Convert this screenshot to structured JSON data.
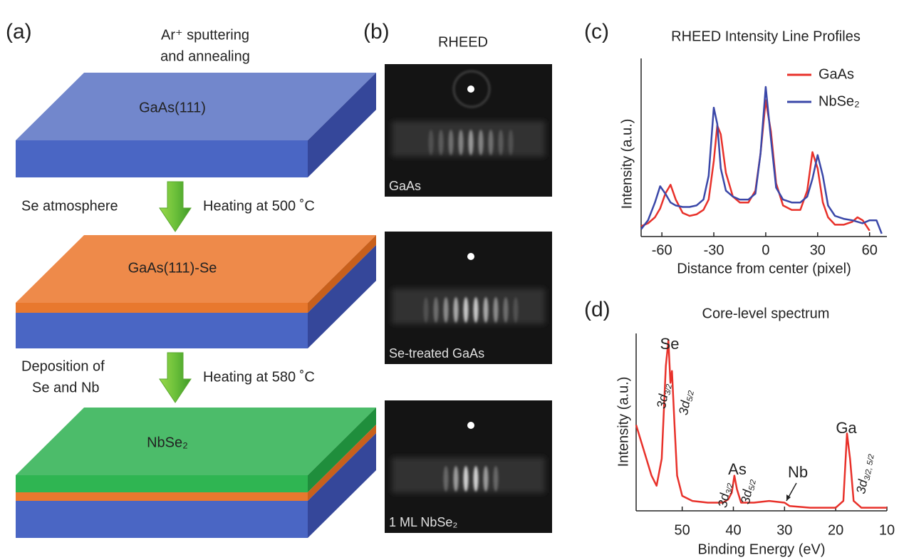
{
  "panel_a": {
    "label": "(a)",
    "step1": [
      "Ar⁺ sputtering",
      "and annealing"
    ],
    "layer1": "GaAs(111)",
    "step2_left": "Se atmosphere",
    "step2_right": "Heating at 500 ˚C",
    "layer2": "GaAs(111)-Se",
    "step3_left": [
      "Deposition of",
      "Se and Nb"
    ],
    "step3_right": "Heating at 580 ˚C",
    "layer3": "NbSe₂"
  },
  "panel_b": {
    "label": "(b)",
    "title": "RHEED",
    "images": [
      "GaAs",
      "Se-treated GaAs",
      "1 ML NbSe₂"
    ]
  },
  "chart_data": [
    {
      "type": "line",
      "panel_label": "(c)",
      "title": "RHEED Intensity Line Profiles",
      "xlabel": "Distance from center (pixel)",
      "ylabel": "Intensity (a.u.)",
      "xlim": [
        -72,
        70
      ],
      "ylim": [
        0,
        1
      ],
      "xticks": [
        -60,
        -30,
        0,
        30,
        60
      ],
      "legend": "upper right",
      "x": [
        -72,
        -68,
        -64,
        -61,
        -58,
        -55,
        -52,
        -48,
        -44,
        -40,
        -36,
        -33,
        -30,
        -28,
        -26,
        -23,
        -19,
        -15,
        -10,
        -6,
        -3,
        0,
        3,
        6,
        10,
        15,
        20,
        24,
        27,
        30,
        33,
        36,
        40,
        45,
        50,
        53,
        56,
        60,
        64,
        67
      ],
      "series": [
        {
          "name": "GaAs",
          "color": "#e8312a",
          "values": [
            0.06,
            0.08,
            0.12,
            0.18,
            0.28,
            0.34,
            0.24,
            0.15,
            0.13,
            0.14,
            0.17,
            0.24,
            0.5,
            0.74,
            0.68,
            0.42,
            0.26,
            0.22,
            0.22,
            0.3,
            0.55,
            0.91,
            0.7,
            0.35,
            0.2,
            0.17,
            0.17,
            0.3,
            0.56,
            0.45,
            0.22,
            0.12,
            0.07,
            0.07,
            0.09,
            0.12,
            0.1,
            0.03,
            null,
            null
          ]
        },
        {
          "name": "NbSe₂",
          "color": "#3a47a8",
          "values": [
            0.04,
            0.1,
            0.22,
            0.33,
            0.28,
            0.22,
            0.2,
            0.19,
            0.19,
            0.2,
            0.24,
            0.4,
            0.86,
            0.75,
            0.45,
            0.3,
            0.26,
            0.24,
            0.24,
            0.28,
            0.55,
            1.0,
            0.65,
            0.32,
            0.24,
            0.22,
            0.22,
            0.26,
            0.38,
            0.54,
            0.4,
            0.2,
            0.13,
            0.11,
            0.1,
            0.09,
            0.08,
            0.1,
            0.1,
            0.01
          ]
        }
      ]
    },
    {
      "type": "line",
      "panel_label": "(d)",
      "title": "Core-level spectrum",
      "xlabel": "Binding Energy (eV)",
      "ylabel": "Intensity (a.u.)",
      "xlim": [
        59,
        10
      ],
      "ylim": [
        0,
        1
      ],
      "xticks": [
        50,
        40,
        30,
        20,
        10
      ],
      "x": [
        59,
        58,
        57,
        56,
        55,
        54,
        53.2,
        52.7,
        52.3,
        52,
        51.5,
        51,
        50,
        48,
        45,
        42,
        41,
        40.3,
        39.8,
        39.3,
        38.5,
        36,
        33,
        30,
        29,
        25,
        20,
        18.5,
        17.8,
        17.2,
        16.5,
        15,
        12,
        10
      ],
      "series": [
        {
          "color": "#e8312a",
          "values": [
            0.5,
            0.4,
            0.3,
            0.2,
            0.14,
            0.3,
            0.85,
            1.0,
            0.75,
            0.82,
            0.5,
            0.2,
            0.08,
            0.05,
            0.04,
            0.04,
            0.06,
            0.1,
            0.2,
            0.12,
            0.04,
            0.04,
            0.05,
            0.04,
            0.02,
            0.01,
            0.01,
            0.05,
            0.45,
            0.3,
            0.05,
            0.01,
            0.01,
            0.01
          ]
        }
      ],
      "annotations": [
        {
          "text": "Se"
        },
        {
          "text": "3d",
          "sub": "3/2"
        },
        {
          "text": "3d",
          "sub": "5/2"
        },
        {
          "text": "As"
        },
        {
          "text": "3d",
          "sub": "3/2"
        },
        {
          "text": "3d",
          "sub": "5/2"
        },
        {
          "text": "Nb"
        },
        {
          "text": "Ga"
        },
        {
          "text": "3d",
          "sub": "3/2, 5/2"
        }
      ]
    }
  ]
}
